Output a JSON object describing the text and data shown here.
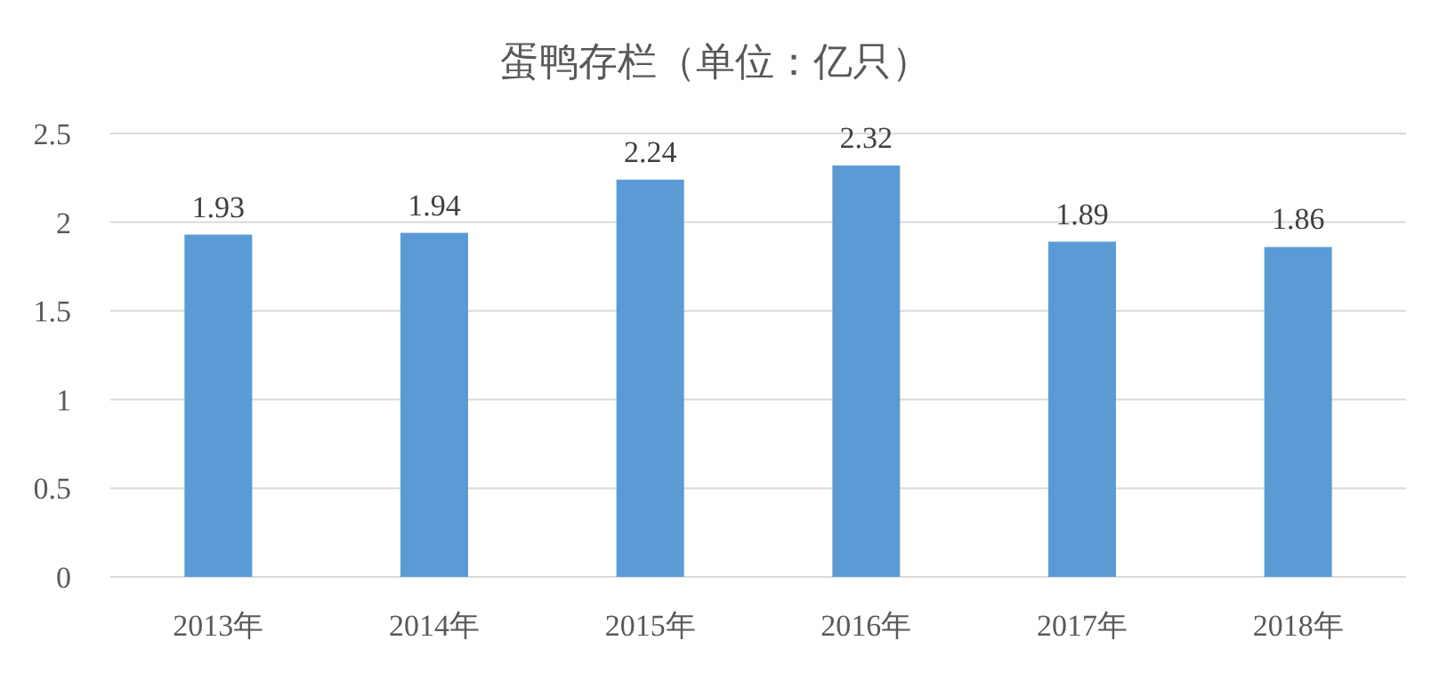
{
  "chart_data": {
    "type": "bar",
    "title": "蛋鸭存栏（单位：亿只）",
    "categories": [
      "2013年",
      "2014年",
      "2015年",
      "2016年",
      "2017年",
      "2018年"
    ],
    "values": [
      1.93,
      1.94,
      2.24,
      2.32,
      1.89,
      1.86
    ],
    "color": "#5b9bd5",
    "ylim": [
      0,
      2.5
    ],
    "yticks": [
      0,
      0.5,
      1,
      1.5,
      2,
      2.5
    ],
    "grid": "y",
    "data_labels": true
  }
}
